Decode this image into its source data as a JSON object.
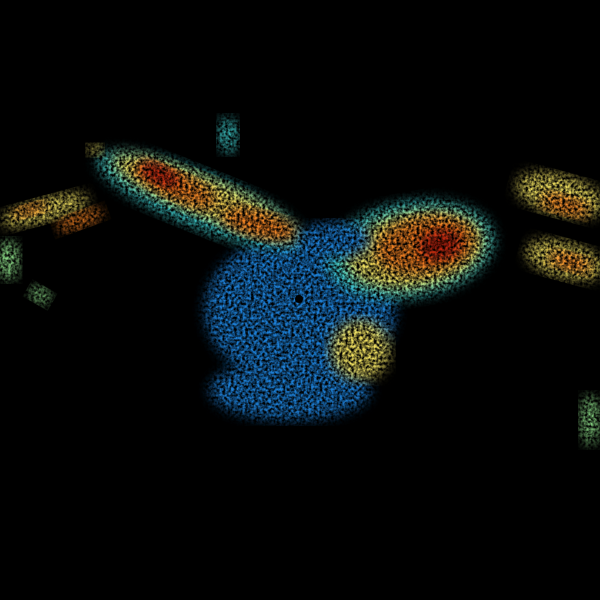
{
  "image": {
    "background": "#000000",
    "palette": {
      "low": "#1f7fd6",
      "cyan": "#3fd0d0",
      "green": "#8fe08a",
      "yellow": "#f0e060",
      "orange": "#f08020",
      "red": "#c02010"
    }
  }
}
